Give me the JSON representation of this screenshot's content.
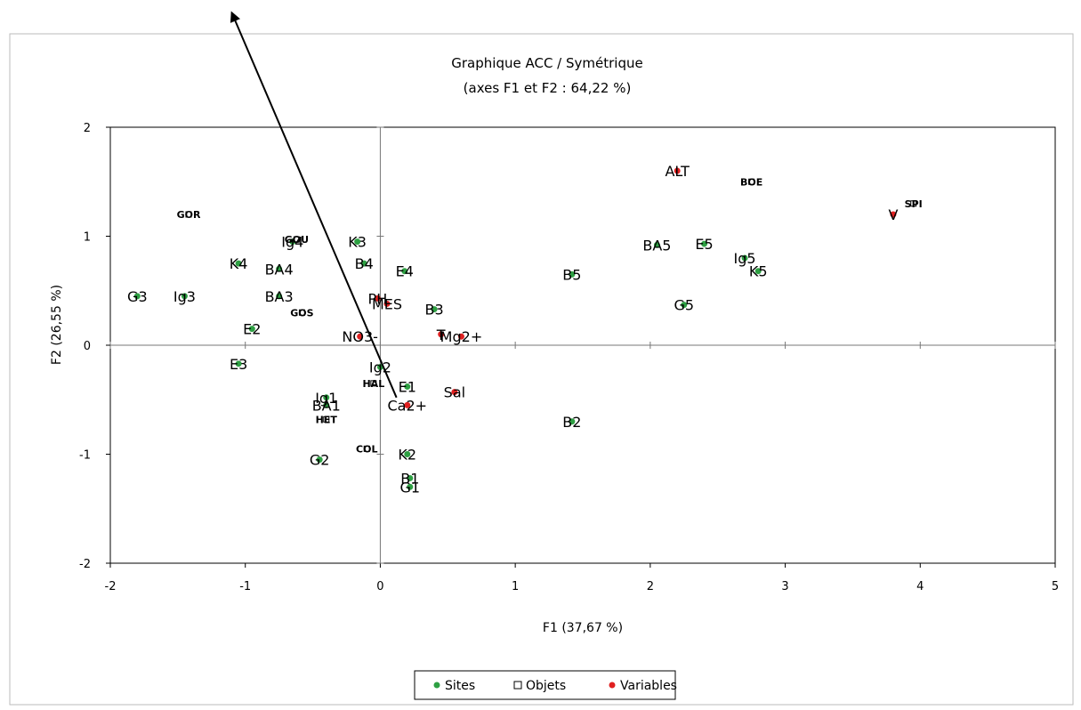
{
  "chart_data": {
    "type": "scatter",
    "title": "Graphique ACC / Symétrique",
    "subtitle": "(axes F1 et F2 : 64,22 %)",
    "xlabel": "F1 (37,67 %)",
    "ylabel": "F2 (26,55 %)",
    "xlim": [
      -2,
      5
    ],
    "ylim": [
      -2,
      2
    ],
    "x_ticks": [
      -2,
      -1,
      0,
      1,
      2,
      3,
      4,
      5
    ],
    "y_ticks": [
      -2,
      -1,
      0,
      1,
      2
    ],
    "x_tick_labels": [
      "-2",
      "-1",
      "0",
      "1",
      "2",
      "3",
      "4",
      "5"
    ],
    "y_tick_labels": [
      "-2",
      "-1",
      "0",
      "1",
      "2"
    ],
    "grid": false,
    "legend_position": "bottom",
    "legend": [
      "Sites",
      "Objets",
      "Variables"
    ],
    "colors": {
      "Sites": "#2ea043",
      "Objets": "#000000",
      "Variables": "#e02020"
    },
    "series": [
      {
        "name": "Sites",
        "points": [
          {
            "label": "G3",
            "x": -1.8,
            "y": 0.45
          },
          {
            "label": "Ig3",
            "x": -1.45,
            "y": 0.45
          },
          {
            "label": "K4",
            "x": -1.05,
            "y": 0.75
          },
          {
            "label": "BA4",
            "x": -0.75,
            "y": 0.7
          },
          {
            "label": "BA3",
            "x": -0.75,
            "y": 0.45
          },
          {
            "label": "E2",
            "x": -0.95,
            "y": 0.15
          },
          {
            "label": "E3",
            "x": -1.05,
            "y": -0.17
          },
          {
            "label": "Ig4",
            "x": -0.65,
            "y": 0.95
          },
          {
            "label": "K3",
            "x": -0.17,
            "y": 0.95
          },
          {
            "label": "B4",
            "x": -0.12,
            "y": 0.75
          },
          {
            "label": "E4",
            "x": 0.18,
            "y": 0.68
          },
          {
            "label": "B3",
            "x": 0.4,
            "y": 0.33
          },
          {
            "label": "Ig1",
            "x": -0.4,
            "y": -0.48
          },
          {
            "label": "BA1",
            "x": -0.4,
            "y": -0.55
          },
          {
            "label": "G2",
            "x": -0.45,
            "y": -1.05
          },
          {
            "label": "K2",
            "x": 0.2,
            "y": -1.0
          },
          {
            "label": "B1",
            "x": 0.22,
            "y": -1.22
          },
          {
            "label": "G1",
            "x": 0.22,
            "y": -1.3
          },
          {
            "label": "E1",
            "x": 0.2,
            "y": -0.38
          },
          {
            "label": "Ig2",
            "x": 0.0,
            "y": -0.2
          },
          {
            "label": "B5",
            "x": 1.42,
            "y": 0.65
          },
          {
            "label": "B2",
            "x": 1.42,
            "y": -0.7
          },
          {
            "label": "BA5",
            "x": 2.05,
            "y": 0.92
          },
          {
            "label": "E5",
            "x": 2.4,
            "y": 0.93
          },
          {
            "label": "Ig5",
            "x": 2.7,
            "y": 0.8
          },
          {
            "label": "K5",
            "x": 2.8,
            "y": 0.68
          },
          {
            "label": "G5",
            "x": 2.25,
            "y": 0.37
          }
        ]
      },
      {
        "name": "Objets",
        "points": [
          {
            "label": "GOR",
            "x": -1.42,
            "y": 1.2
          },
          {
            "label": "GOU",
            "x": -0.62,
            "y": 0.97
          },
          {
            "label": "GOS",
            "x": -0.58,
            "y": 0.3
          },
          {
            "label": "BOE",
            "x": 2.75,
            "y": 1.5
          },
          {
            "label": "SPI",
            "x": 3.95,
            "y": 1.3
          },
          {
            "label": "COL",
            "x": -0.1,
            "y": -0.95
          },
          {
            "label": "HET",
            "x": -0.4,
            "y": -0.68
          },
          {
            "label": "HAL",
            "x": -0.05,
            "y": -0.35
          }
        ]
      },
      {
        "name": "Variables",
        "points": [
          {
            "label": "ALT",
            "x": 2.2,
            "y": 1.6
          },
          {
            "label": "V",
            "x": 3.8,
            "y": 1.2
          },
          {
            "label": "PH",
            "x": -0.02,
            "y": 0.43
          },
          {
            "label": "MES",
            "x": 0.05,
            "y": 0.38
          },
          {
            "label": "NO3-",
            "x": -0.15,
            "y": 0.08
          },
          {
            "label": "T",
            "x": 0.45,
            "y": 0.1
          },
          {
            "label": "Mg2+",
            "x": 0.6,
            "y": 0.08
          },
          {
            "label": "Sal",
            "x": 0.55,
            "y": -0.43
          },
          {
            "label": "Ca2+",
            "x": 0.2,
            "y": -0.55
          }
        ]
      }
    ],
    "annotations": [
      {
        "type": "arrow",
        "from": [
          0.12,
          -0.48
        ],
        "to": [
          -1.1,
          3.05
        ]
      }
    ]
  }
}
